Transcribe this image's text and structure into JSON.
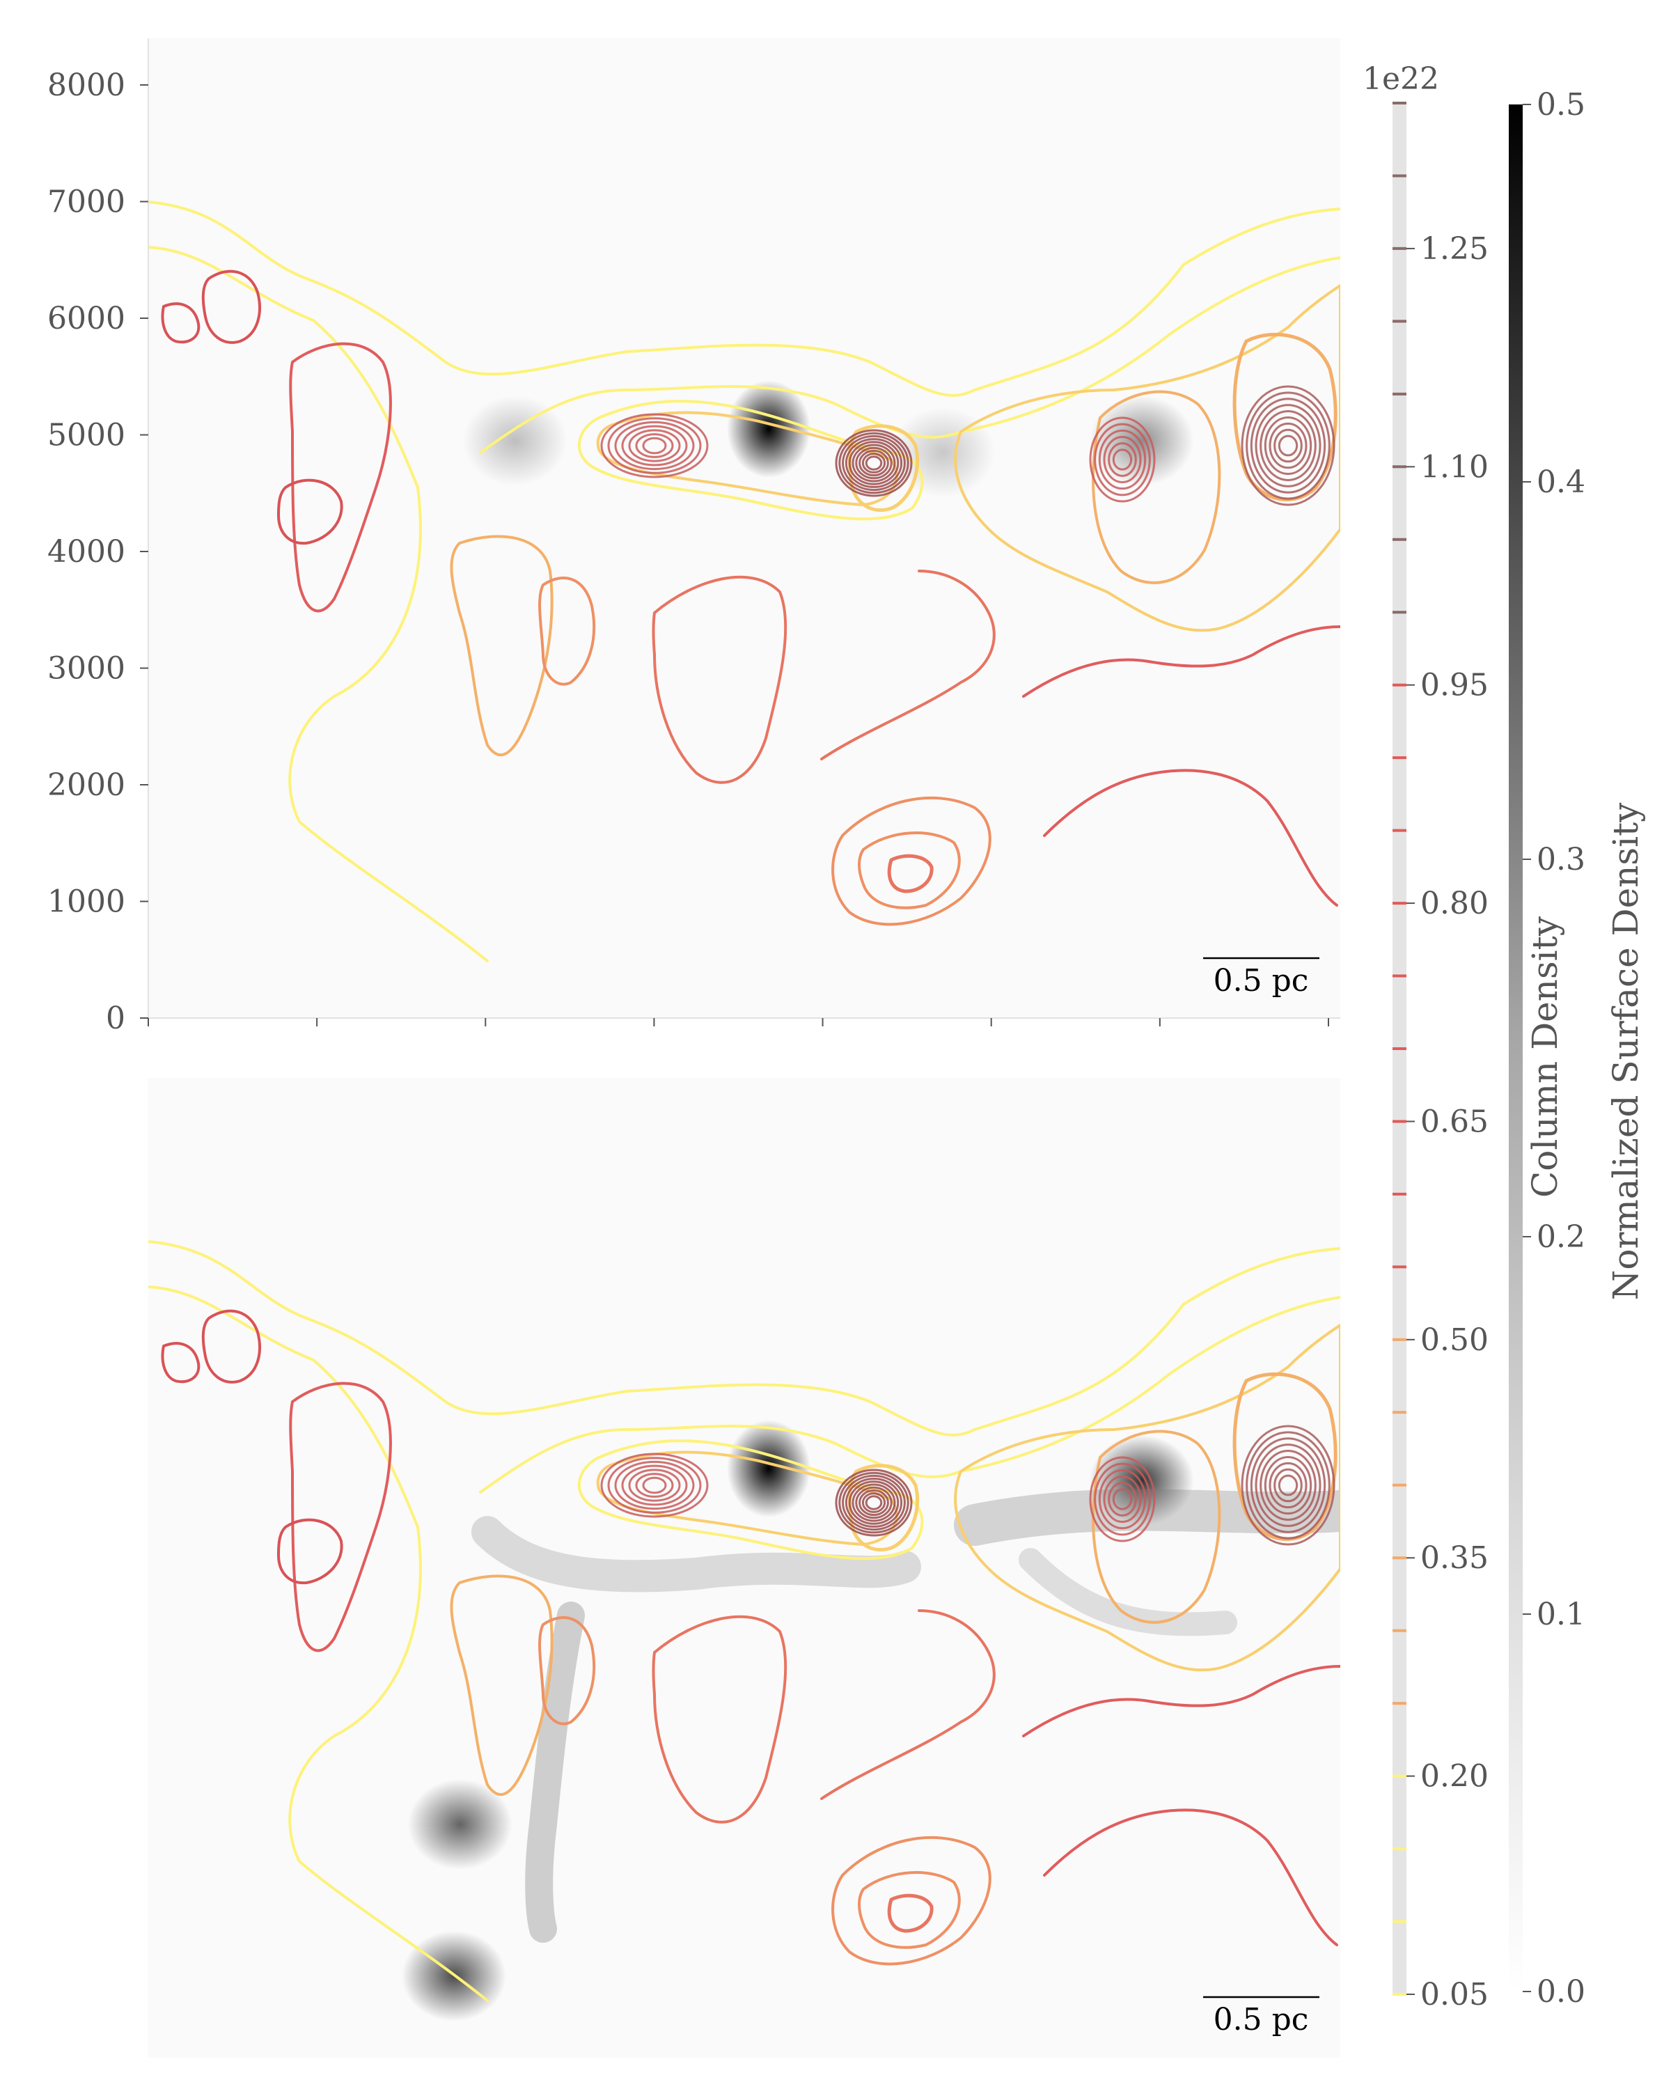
{
  "chart_data": [
    {
      "type": "heatmap",
      "panel": "top",
      "description_of_layers": [
        "grayscale normalized surface density image",
        "column density contours (yellow to red)"
      ],
      "ylim": [
        0,
        8400
      ],
      "yticks": [
        "0",
        "1000",
        "2000",
        "3000",
        "4000",
        "5000",
        "6000",
        "7000",
        "8000"
      ],
      "xtick_count": 8,
      "grid": false,
      "scale_bar": "0.5 pc",
      "peaks": [
        {
          "x": 2030,
          "y": 5050,
          "value": 0.5
        },
        {
          "x": 1200,
          "y": 4950,
          "value": 0.12
        },
        {
          "x": 2600,
          "y": 4850,
          "value": 0.1
        },
        {
          "x": 3250,
          "y": 4950,
          "value": 0.22
        }
      ]
    },
    {
      "type": "heatmap",
      "panel": "bottom",
      "description_of_layers": [
        "grayscale normalized surface density image",
        "column density contours (yellow to red)"
      ],
      "scale_bar": "0.5 pc",
      "peaks": [
        {
          "x": 2030,
          "y": 5050,
          "value": 0.5
        },
        {
          "x": 3250,
          "y": 4950,
          "value": 0.4
        },
        {
          "x": 1020,
          "y": 2000,
          "value": 0.3
        },
        {
          "x": 1000,
          "y": 700,
          "value": 0.35
        }
      ]
    }
  ],
  "colorbars": {
    "column_density": {
      "label": "Column Density",
      "offset_text": "1e22",
      "ticks": [
        "0.05",
        "0.20",
        "0.35",
        "0.50",
        "0.65",
        "0.80",
        "0.95",
        "1.10",
        "1.25"
      ],
      "tick_values": [
        0.05,
        0.2,
        0.35,
        0.5,
        0.65,
        0.8,
        0.95,
        1.1,
        1.25
      ],
      "range": [
        0.05,
        1.35
      ],
      "levels_step": 0.05,
      "colors": {
        "low": "#fef37a",
        "mid": "#f3a86a",
        "high": "#e05a5a",
        "top": "#8a6a6a"
      }
    },
    "surface_density": {
      "label": "Normalized Surface Density",
      "ticks": [
        "0.0",
        "0.1",
        "0.2",
        "0.3",
        "0.4",
        "0.5"
      ],
      "tick_values": [
        0.0,
        0.1,
        0.2,
        0.3,
        0.4,
        0.5
      ],
      "range": [
        0.0,
        0.5
      ],
      "colormap": "Greys"
    }
  }
}
